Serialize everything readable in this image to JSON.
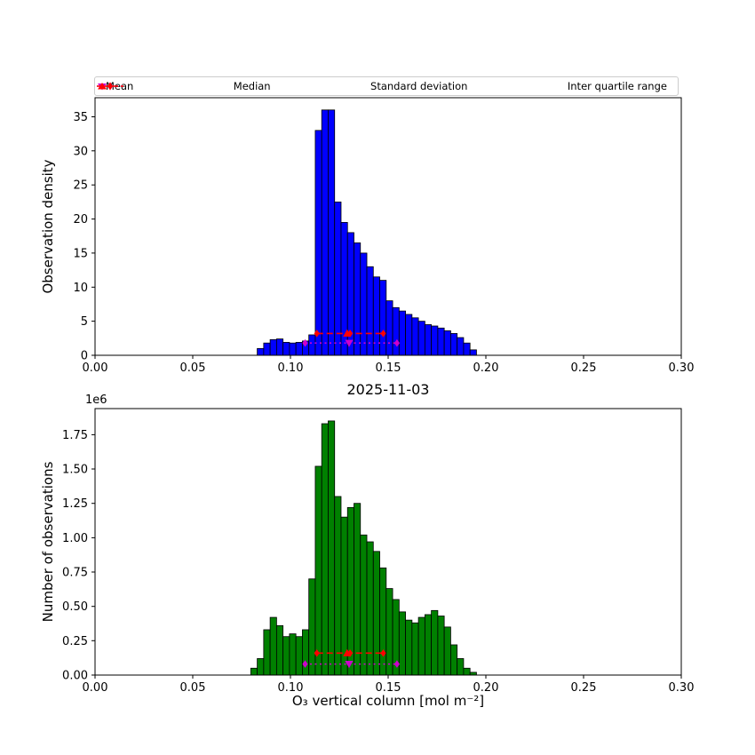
{
  "figure": {
    "title": "2025-11-03",
    "xlabel": "O₃ vertical column [mol m⁻²]",
    "legend": [
      {
        "label": "Mean",
        "marker": "triangle-down",
        "color": "#cc00cc"
      },
      {
        "label": "Median",
        "marker": "triangle-up",
        "color": "#ff0000"
      },
      {
        "label": "Standard deviation",
        "marker": "diamond-dotted-line",
        "color": "#cc00cc"
      },
      {
        "label": "Inter quartile range",
        "marker": "diamond-dashed-line",
        "color": "#ff0000"
      }
    ]
  },
  "chart_data": [
    {
      "type": "bar",
      "title": "",
      "ylabel": "Observation density",
      "xlabel": "",
      "bar_color": "#0000ff",
      "colors": {
        "magenta": "#cc00cc",
        "red": "#ff0000"
      },
      "xlim": [
        0.0,
        0.3
      ],
      "ylim": [
        0,
        37.8
      ],
      "xticks": [
        0.0,
        0.05,
        0.1,
        0.15,
        0.2,
        0.25,
        0.3
      ],
      "xtick_labels": [
        "0.00",
        "0.05",
        "0.10",
        "0.15",
        "0.20",
        "0.25",
        "0.30"
      ],
      "yticks": [
        0,
        5,
        10,
        15,
        20,
        25,
        30,
        35
      ],
      "ytick_labels": [
        "0",
        "5",
        "10",
        "15",
        "20",
        "25",
        "30",
        "35"
      ],
      "bin_start": 0.083,
      "bin_width": 0.0033,
      "values": [
        1.0,
        1.8,
        2.3,
        2.4,
        1.9,
        1.8,
        1.9,
        2.1,
        3.0,
        33.0,
        36.0,
        36.0,
        22.5,
        19.5,
        18.0,
        16.5,
        15.0,
        13.0,
        11.5,
        11.0,
        8.0,
        7.0,
        6.5,
        6.0,
        5.5,
        5.0,
        4.5,
        4.3,
        4.0,
        3.6,
        3.2,
        2.6,
        1.8,
        0.8
      ],
      "stats": {
        "mean": {
          "x": 0.13
        },
        "median": {
          "x": 0.129
        },
        "std": {
          "x1": 0.1075,
          "x2": 0.1545,
          "y": 1.8
        },
        "iqr": {
          "x1": 0.1135,
          "x2": 0.1475,
          "y": 3.2
        }
      }
    },
    {
      "type": "bar",
      "title": "2025-11-03",
      "ylabel": "Number of observations",
      "xlabel": "O₃ vertical column [mol m⁻²]",
      "offset_label": "1e6",
      "bar_color": "#008000",
      "colors": {
        "magenta": "#cc00cc",
        "red": "#ff0000"
      },
      "xlim": [
        0.0,
        0.3
      ],
      "ylim": [
        0,
        1.94
      ],
      "xticks": [
        0.0,
        0.05,
        0.1,
        0.15,
        0.2,
        0.25,
        0.3
      ],
      "xtick_labels": [
        "0.00",
        "0.05",
        "0.10",
        "0.15",
        "0.20",
        "0.25",
        "0.30"
      ],
      "yticks": [
        0.0,
        0.25,
        0.5,
        0.75,
        1.0,
        1.25,
        1.5,
        1.75
      ],
      "ytick_labels": [
        "0.00",
        "0.25",
        "0.50",
        "0.75",
        "1.00",
        "1.25",
        "1.50",
        "1.75"
      ],
      "value_scale": "1e6",
      "bin_start": 0.0797,
      "bin_width": 0.0033,
      "values": [
        0.05,
        0.12,
        0.33,
        0.42,
        0.36,
        0.28,
        0.3,
        0.28,
        0.33,
        0.7,
        1.52,
        1.83,
        1.85,
        1.3,
        1.15,
        1.22,
        1.25,
        1.02,
        0.97,
        0.9,
        0.78,
        0.63,
        0.55,
        0.46,
        0.4,
        0.38,
        0.42,
        0.44,
        0.47,
        0.43,
        0.35,
        0.22,
        0.12,
        0.05,
        0.02
      ],
      "stats": {
        "mean": {
          "x": 0.13
        },
        "median": {
          "x": 0.129
        },
        "std": {
          "x1": 0.1075,
          "x2": 0.1545,
          "y": 0.08
        },
        "iqr": {
          "x1": 0.1135,
          "x2": 0.1475,
          "y": 0.16
        }
      }
    }
  ]
}
